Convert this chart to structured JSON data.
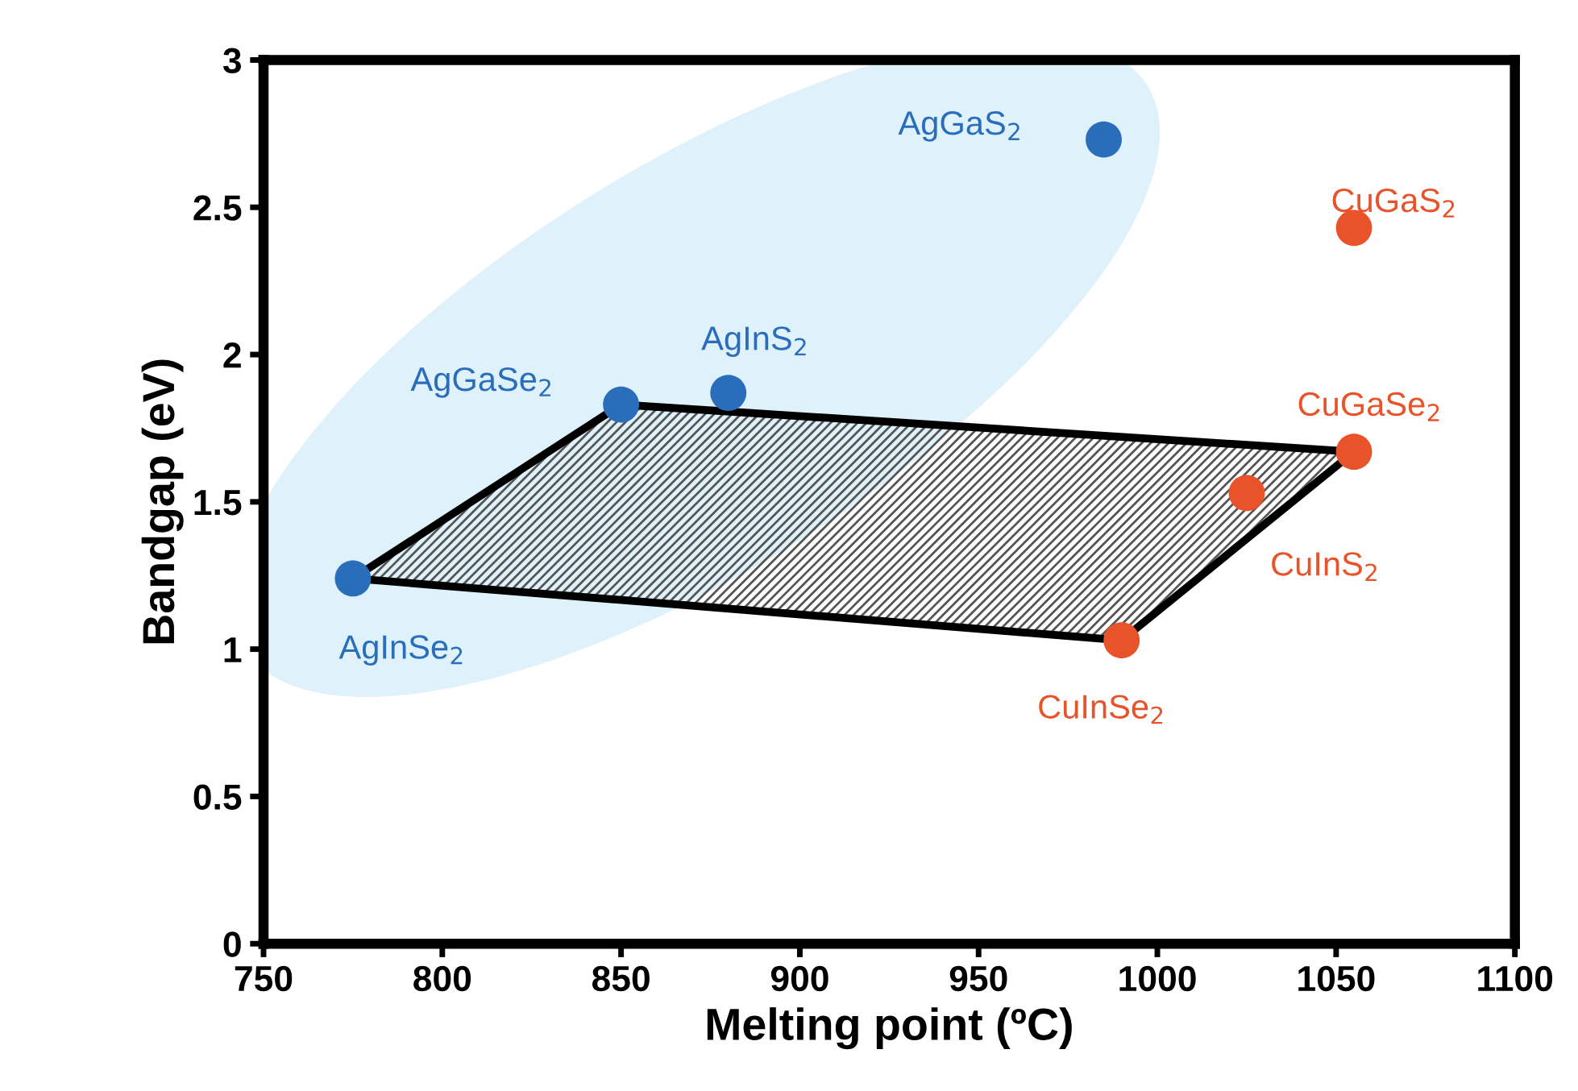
{
  "chart_data": {
    "type": "scatter",
    "xlabel": "Melting point (ºC)",
    "ylabel": "Bandgap (eV)",
    "xlim": [
      750,
      1100
    ],
    "xticks": [
      750,
      800,
      850,
      900,
      950,
      1000,
      1050,
      1100
    ],
    "ylim": [
      0,
      3
    ],
    "yticks": [
      0,
      {
        "value": 0.5,
        "label": "0.5"
      },
      1,
      {
        "value": 1.5,
        "label": "1.5"
      },
      2,
      {
        "value": 2.5,
        "label": "2.5"
      },
      3
    ],
    "grid": false,
    "legend": false,
    "series": [
      {
        "type": "area",
        "color": "#000000",
        "x": [
          775,
          850,
          1055,
          990,
          775
        ],
        "values": [
          1.24,
          1.83,
          1.67,
          1.03,
          1.24
        ]
      },
      {
        "color": "#2a6ebb",
        "marker": "circle",
        "x": [
          985,
          850,
          880,
          775
        ],
        "values": [
          2.73,
          1.83,
          1.87,
          1.24
        ]
      },
      {
        "color": "#e8532a",
        "marker": "circle",
        "x": [
          1055,
          1055,
          1025,
          990
        ],
        "values": [
          2.43,
          1.67,
          1.53,
          1.03
        ]
      }
    ],
    "annotations": [
      {
        "text": "AgGaS$_{2}$",
        "x": 985,
        "y": 2.73
      },
      {
        "text": "AgGaSe$_{2}$",
        "x": 850,
        "y": 1.83
      },
      {
        "text": "AgInS$_{2}$",
        "x": 880,
        "y": 1.87
      },
      {
        "text": "AgInSe$_{2}$",
        "x": 775,
        "y": 1.24
      },
      {
        "text": "CuGaS$_{2}$",
        "x": 1055,
        "y": 2.43
      },
      {
        "text": "CuGaSe$_{2}$",
        "x": 1055,
        "y": 1.67
      },
      {
        "text": "CuInS$_{2}$",
        "x": 1025,
        "y": 1.53
      },
      {
        "text": "CuInSe$_{2}$",
        "x": 990,
        "y": 1.03
      }
    ]
  }
}
